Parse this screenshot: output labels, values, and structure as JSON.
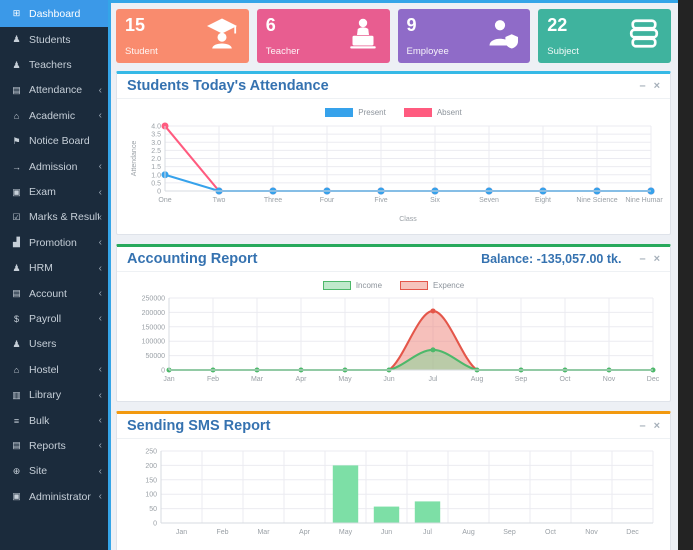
{
  "theme": {
    "topbar_accent": "#34a5e8",
    "sidebar_bg": "#1b2b3c",
    "sidebar_active_bg": "#3b99e8",
    "content_bg": "#edf0f5",
    "title_color": "#3572b0"
  },
  "sidebar": {
    "items": [
      {
        "label": "Dashboard",
        "icon": "dashboard-icon",
        "glyph": "⊞",
        "active": true,
        "chevron": false
      },
      {
        "label": "Students",
        "icon": "student-icon",
        "glyph": "♟",
        "active": false,
        "chevron": false
      },
      {
        "label": "Teachers",
        "icon": "teacher-icon",
        "glyph": "♟",
        "active": false,
        "chevron": false
      },
      {
        "label": "Attendance",
        "icon": "attendance-icon",
        "glyph": "▤",
        "active": false,
        "chevron": true
      },
      {
        "label": "Academic",
        "icon": "academic-icon",
        "glyph": "⌂",
        "active": false,
        "chevron": true
      },
      {
        "label": "Notice Board",
        "icon": "notice-board-icon",
        "glyph": "⚑",
        "active": false,
        "chevron": false
      },
      {
        "label": "Admission",
        "icon": "admission-icon",
        "glyph": "→",
        "active": false,
        "chevron": true
      },
      {
        "label": "Exam",
        "icon": "exam-icon",
        "glyph": "▣",
        "active": false,
        "chevron": true
      },
      {
        "label": "Marks & Result",
        "icon": "marks-result-icon",
        "glyph": "☑",
        "active": false,
        "chevron": true
      },
      {
        "label": "Promotion",
        "icon": "promotion-chart-icon",
        "glyph": "▟",
        "active": false,
        "chevron": true
      },
      {
        "label": "HRM",
        "icon": "hrm-users-icon",
        "glyph": "♟",
        "active": false,
        "chevron": true
      },
      {
        "label": "Account",
        "icon": "account-icon",
        "glyph": "▤",
        "active": false,
        "chevron": true
      },
      {
        "label": "Payroll",
        "icon": "payroll-dollar-icon",
        "glyph": "$",
        "active": false,
        "chevron": true
      },
      {
        "label": "Users",
        "icon": "users-icon",
        "glyph": "♟",
        "active": false,
        "chevron": false
      },
      {
        "label": "Hostel",
        "icon": "hostel-icon",
        "glyph": "⌂",
        "active": false,
        "chevron": true
      },
      {
        "label": "Library",
        "icon": "library-icon",
        "glyph": "▥",
        "active": false,
        "chevron": true
      },
      {
        "label": "Bulk",
        "icon": "bulk-list-icon",
        "glyph": "≡",
        "active": false,
        "chevron": true
      },
      {
        "label": "Reports",
        "icon": "reports-icon",
        "glyph": "▤",
        "active": false,
        "chevron": true
      },
      {
        "label": "Site",
        "icon": "site-globe-icon",
        "glyph": "⊕",
        "active": false,
        "chevron": true
      },
      {
        "label": "Administrator",
        "icon": "administrator-lock-icon",
        "glyph": "▣",
        "active": false,
        "chevron": true
      }
    ],
    "chevron_glyph": "‹"
  },
  "cards": [
    {
      "value": "15",
      "label": "Student",
      "icon": "graduate-icon",
      "color": "#f98b6e"
    },
    {
      "value": "6",
      "label": "Teacher",
      "icon": "teacher-laptop-icon",
      "color": "#e85d90"
    },
    {
      "value": "9",
      "label": "Employee",
      "icon": "employee-shield-icon",
      "color": "#8f6bc8"
    },
    {
      "value": "22",
      "label": "Subject",
      "icon": "books-icon",
      "color": "#3fb39e"
    }
  ],
  "panel_controls": {
    "minimize": "–",
    "close": "×"
  },
  "panels": [
    {
      "title": "Students Today's Attendance",
      "accent": "#36b9e6",
      "legend": [
        {
          "label": "Present",
          "color": "#36a2eb"
        },
        {
          "label": "Absent",
          "color": "#ff5b7f"
        }
      ]
    },
    {
      "title": "Accounting Report",
      "accent": "#28a95c",
      "balance": "Balance: -135,057.00 tk.",
      "legend": [
        {
          "label": "Income",
          "fill": "#bfe9cb",
          "border": "#4db86a"
        },
        {
          "label": "Expence",
          "fill": "#f6c3bc",
          "border": "#e4564a"
        }
      ]
    },
    {
      "title": "Sending SMS Report",
      "accent": "#f2990f",
      "legend": []
    }
  ],
  "chart_data": [
    {
      "type": "line",
      "title": "Students Today's Attendance",
      "categories": [
        "One",
        "Two",
        "Three",
        "Four",
        "Five",
        "Six",
        "Seven",
        "Eight",
        "Nine Science",
        "Nine Humanities"
      ],
      "series": [
        {
          "name": "Present",
          "color": "#36a2eb",
          "values": [
            1,
            0,
            0,
            0,
            0,
            0,
            0,
            0,
            0,
            0
          ],
          "dots": "all"
        },
        {
          "name": "Absent",
          "color": "#ff5b7f",
          "values": [
            4,
            0,
            0,
            0,
            0,
            0,
            0,
            0,
            0,
            0
          ],
          "dots": "all"
        }
      ],
      "xlabel": "Class",
      "ylabel": "Attendance",
      "ylim": [
        0,
        4
      ],
      "yticks": [
        0,
        0.5,
        1,
        1.5,
        2,
        2.5,
        3,
        3.5,
        4
      ],
      "ytick_labels": [
        "0",
        "0.5",
        "1.0",
        "1.5",
        "2.0",
        "2.5",
        "3.0",
        "3.5",
        "4.0"
      ],
      "grid": true,
      "legend_position": "top",
      "smooth": false,
      "dot_r": 3.5
    },
    {
      "type": "area",
      "title": "Accounting Report",
      "categories": [
        "Jan",
        "Feb",
        "Mar",
        "Apr",
        "May",
        "Jun",
        "Jul",
        "Aug",
        "Sep",
        "Oct",
        "Nov",
        "Dec"
      ],
      "series": [
        {
          "name": "Income",
          "color": "#4db86a",
          "fill": "rgba(125,214,150,0.5)",
          "values": [
            0,
            0,
            0,
            0,
            0,
            0,
            70000,
            0,
            0,
            0,
            0,
            0
          ],
          "dots": "all"
        },
        {
          "name": "Expence",
          "color": "#e4564a",
          "fill": "rgba(238,130,120,0.5)",
          "values": [
            0,
            0,
            0,
            0,
            0,
            0,
            205057,
            0,
            0,
            0,
            0,
            0
          ],
          "dots": "nonzero"
        }
      ],
      "xlabel": "",
      "ylabel": "",
      "ylim": [
        0,
        250000
      ],
      "yticks": [
        0,
        50000,
        100000,
        150000,
        200000,
        250000
      ],
      "ytick_labels": [
        "0",
        "50000",
        "100000",
        "150000",
        "200000",
        "250000"
      ],
      "grid": true,
      "legend_position": "top",
      "smooth": true,
      "dot_r": 2.5,
      "balance": "-135,057.00 tk."
    },
    {
      "type": "bar",
      "title": "Sending SMS Report",
      "categories": [
        "Jan",
        "Feb",
        "Mar",
        "Apr",
        "May",
        "Jun",
        "Jul",
        "Aug",
        "Sep",
        "Oct",
        "Nov",
        "Dec"
      ],
      "values": [
        0,
        0,
        0,
        0,
        200,
        57,
        75,
        0,
        0,
        0,
        0,
        0
      ],
      "color": "#7ddfa6",
      "xlabel": "",
      "ylabel": "",
      "ylim": [
        0,
        250
      ],
      "yticks": [
        0,
        50,
        100,
        150,
        200,
        250
      ],
      "ytick_labels": [
        "0",
        "50",
        "100",
        "150",
        "200",
        "250"
      ],
      "grid": true,
      "legend_position": "none"
    }
  ]
}
